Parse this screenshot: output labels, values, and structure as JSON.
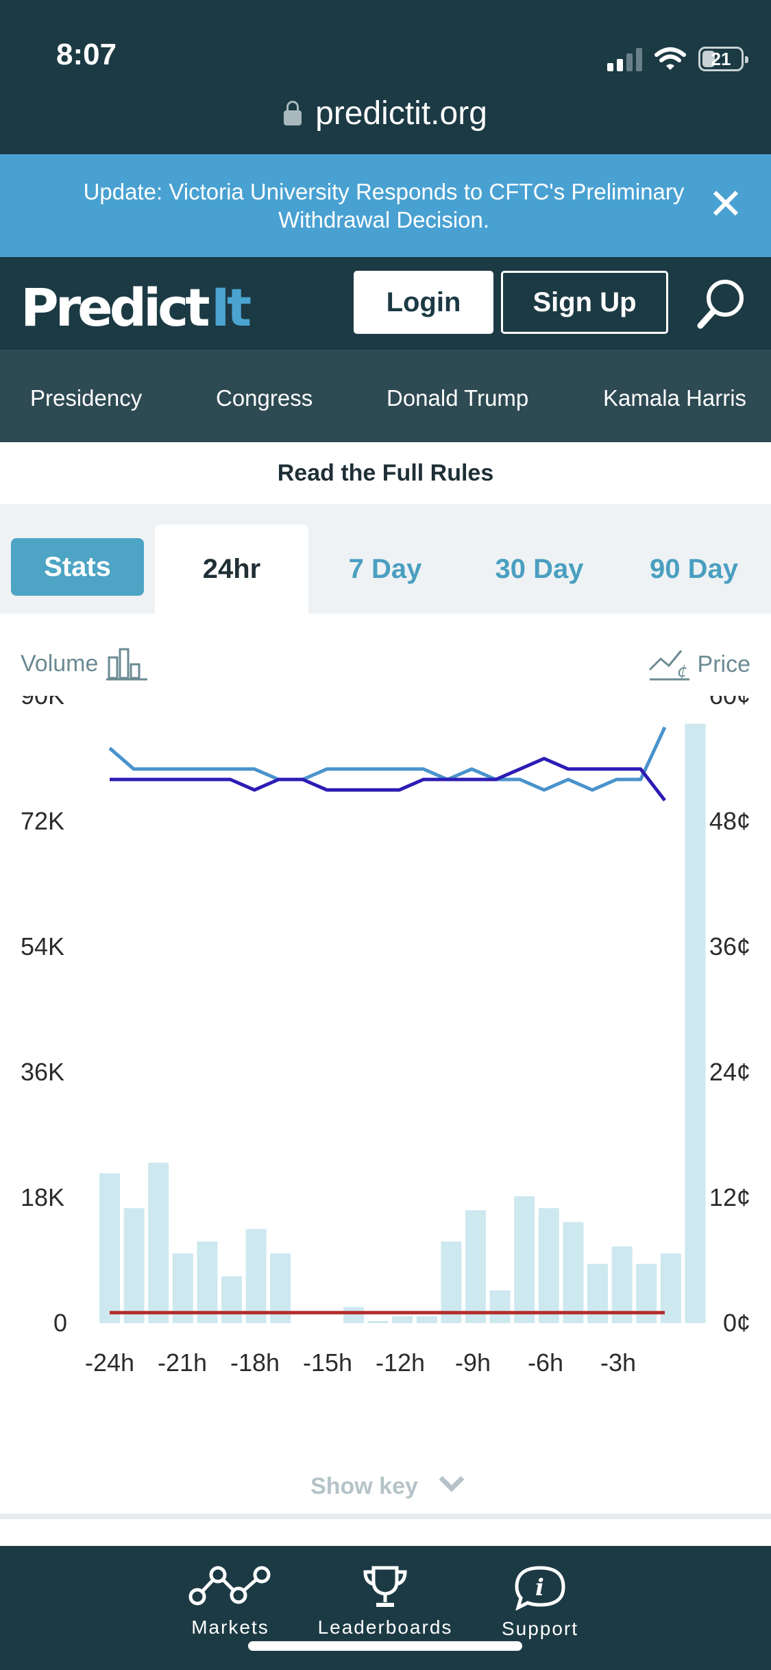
{
  "status_bar": {
    "time": "8:07",
    "battery": "21"
  },
  "browser": {
    "url": "predictit.org"
  },
  "banner": {
    "text": "Update: Victoria University Responds to CFTC's Preliminary Withdrawal Decision.",
    "close": "✕"
  },
  "header": {
    "logo_main": "Predict",
    "logo_accent": "It",
    "login_label": "Login",
    "signup_label": "Sign Up"
  },
  "nav": {
    "items": [
      "Presidency",
      "Congress",
      "Donald Trump",
      "Kamala Harris"
    ]
  },
  "rules_link": "Read the Full Rules",
  "tabs": {
    "stats": "Stats",
    "items": [
      "24hr",
      "7 Day",
      "30 Day",
      "90 Day"
    ],
    "active": "24hr"
  },
  "chart_labels": {
    "volume": "Volume",
    "price": "Price",
    "show_key": "Show key"
  },
  "chart_data": {
    "type": "bar",
    "y_left_ticks": [
      "90K",
      "72K",
      "54K",
      "36K",
      "18K",
      "0"
    ],
    "y_right_ticks": [
      "60¢",
      "48¢",
      "36¢",
      "24¢",
      "12¢",
      "0¢"
    ],
    "x_ticks": [
      "-24h",
      "-21h",
      "-18h",
      "-15h",
      "-12h",
      "-9h",
      "-6h",
      "-3h"
    ],
    "ylim_left": [
      0,
      90000
    ],
    "ylim_right": [
      0,
      60
    ],
    "volume": [
      21500,
      16500,
      23000,
      10000,
      11700,
      6700,
      13500,
      10000,
      0,
      0,
      2300,
      300,
      1000,
      1000,
      11700,
      16200,
      4700,
      18200,
      16500,
      14500,
      8500,
      11000,
      8500,
      10000,
      86000
    ],
    "series": [
      {
        "color": "#4a93cc",
        "values": [
          55,
          53,
          53,
          53,
          53,
          53,
          53,
          52,
          52,
          53,
          53,
          53,
          53,
          53,
          52,
          53,
          52,
          52,
          51,
          52,
          51,
          52,
          52,
          57
        ]
      },
      {
        "color": "#2c1cb4",
        "values": [
          52,
          52,
          52,
          52,
          52,
          52,
          51,
          52,
          52,
          51,
          51,
          51,
          51,
          52,
          52,
          52,
          52,
          53,
          54,
          53,
          53,
          53,
          53,
          50
        ]
      },
      {
        "color": "#b32d2d",
        "values": [
          1,
          1,
          1,
          1,
          1,
          1,
          1,
          1,
          1,
          1,
          1,
          1,
          1,
          1,
          1,
          1,
          1,
          1,
          1,
          1,
          1,
          1,
          1,
          1
        ]
      }
    ]
  },
  "bottom_nav": {
    "items": [
      "Markets",
      "Leaderboards",
      "Support"
    ]
  }
}
